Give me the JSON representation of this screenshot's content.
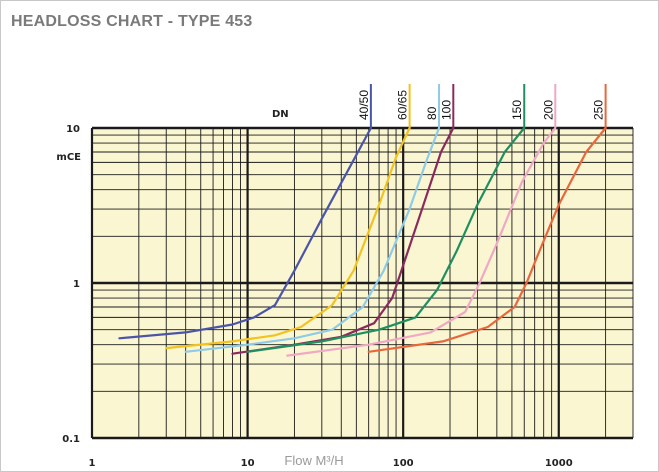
{
  "chart_data": {
    "type": "line",
    "title": "HEADLOSS CHART - TYPE 453",
    "xlabel": "Flow M³/H",
    "ylabel": "mCE",
    "legend_title": "DN",
    "xscale": "log",
    "yscale": "log",
    "xlim": [
      1,
      3000
    ],
    "ylim": [
      0.1,
      10
    ],
    "x_ticks": [
      {
        "v": 1,
        "label": "1"
      },
      {
        "v": 10,
        "label": "10"
      },
      {
        "v": 100,
        "label": "100"
      },
      {
        "v": 1000,
        "label": "1000"
      }
    ],
    "y_ticks": [
      {
        "v": 0.1,
        "label": "0.1"
      },
      {
        "v": 1,
        "label": "1"
      },
      {
        "v": 10,
        "label": "10"
      }
    ],
    "grid": true,
    "series": [
      {
        "name": "40/50",
        "color": "#4a55a8",
        "points": [
          [
            1.5,
            0.44
          ],
          [
            4,
            0.48
          ],
          [
            8,
            0.54
          ],
          [
            11,
            0.6
          ],
          [
            15,
            0.72
          ],
          [
            20,
            1.2
          ],
          [
            30,
            2.6
          ],
          [
            45,
            5.5
          ],
          [
            62,
            10
          ]
        ]
      },
      {
        "name": "60/65",
        "color": "#f2c21e",
        "points": [
          [
            3,
            0.38
          ],
          [
            8,
            0.42
          ],
          [
            15,
            0.46
          ],
          [
            22,
            0.52
          ],
          [
            35,
            0.72
          ],
          [
            48,
            1.2
          ],
          [
            70,
            3.2
          ],
          [
            90,
            6.5
          ],
          [
            110,
            10
          ]
        ]
      },
      {
        "name": "80",
        "color": "#8ecbe6",
        "points": [
          [
            4,
            0.36
          ],
          [
            10,
            0.4
          ],
          [
            20,
            0.44
          ],
          [
            35,
            0.5
          ],
          [
            55,
            0.7
          ],
          [
            75,
            1.2
          ],
          [
            110,
            3.0
          ],
          [
            140,
            6.0
          ],
          [
            170,
            10
          ]
        ]
      },
      {
        "name": "100",
        "color": "#8b2a5c",
        "points": [
          [
            8,
            0.35
          ],
          [
            20,
            0.4
          ],
          [
            40,
            0.45
          ],
          [
            65,
            0.55
          ],
          [
            85,
            0.8
          ],
          [
            100,
            1.3
          ],
          [
            135,
            3.2
          ],
          [
            175,
            7
          ],
          [
            210,
            10
          ]
        ]
      },
      {
        "name": "150",
        "color": "#1f8f5f",
        "points": [
          [
            10,
            0.36
          ],
          [
            30,
            0.42
          ],
          [
            70,
            0.5
          ],
          [
            120,
            0.6
          ],
          [
            165,
            0.9
          ],
          [
            220,
            1.6
          ],
          [
            300,
            3.2
          ],
          [
            450,
            7
          ],
          [
            600,
            10
          ]
        ]
      },
      {
        "name": "200",
        "color": "#f0a8c4",
        "points": [
          [
            18,
            0.34
          ],
          [
            60,
            0.4
          ],
          [
            150,
            0.48
          ],
          [
            250,
            0.65
          ],
          [
            310,
            1.0
          ],
          [
            400,
            1.8
          ],
          [
            580,
            4.5
          ],
          [
            800,
            8
          ],
          [
            950,
            10
          ]
        ]
      },
      {
        "name": "250",
        "color": "#e8673c",
        "points": [
          [
            60,
            0.36
          ],
          [
            180,
            0.42
          ],
          [
            350,
            0.52
          ],
          [
            520,
            0.7
          ],
          [
            620,
            1.0
          ],
          [
            750,
            1.6
          ],
          [
            1000,
            3.2
          ],
          [
            1500,
            7
          ],
          [
            2000,
            10
          ]
        ]
      }
    ]
  }
}
